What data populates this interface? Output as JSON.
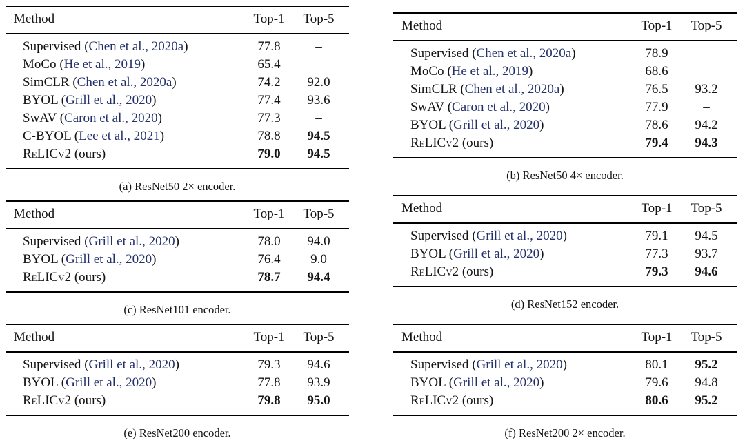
{
  "page": {
    "background": "#ffffff",
    "text_color": "#131313",
    "citation_color": "#23306a"
  },
  "tables": [
    {
      "id": "a",
      "caption": "(a) ResNet50 2× encoder.",
      "columns": [
        "Method",
        "Top-1",
        "Top-5"
      ],
      "rows": [
        {
          "method": "Supervised",
          "cite": "Chen et al., 2020a",
          "top1": "77.8",
          "top5": "–",
          "bold1": false,
          "bold5": false,
          "smallcaps": false
        },
        {
          "method": "MoCo",
          "cite": "He et al., 2019",
          "top1": "65.4",
          "top5": "–",
          "bold1": false,
          "bold5": false,
          "smallcaps": false
        },
        {
          "method": "SimCLR",
          "cite": "Chen et al., 2020a",
          "top1": "74.2",
          "top5": "92.0",
          "bold1": false,
          "bold5": false,
          "smallcaps": false
        },
        {
          "method": "BYOL",
          "cite": "Grill et al., 2020",
          "top1": "77.4",
          "top5": "93.6",
          "bold1": false,
          "bold5": false,
          "smallcaps": false
        },
        {
          "method": "SwAV",
          "cite": "Caron et al., 2020",
          "top1": "77.3",
          "top5": "–",
          "bold1": false,
          "bold5": false,
          "smallcaps": false
        },
        {
          "method": "C-BYOL",
          "cite": "Lee et al., 2021",
          "top1": "78.8",
          "top5": "94.5",
          "bold1": false,
          "bold5": true,
          "smallcaps": false
        },
        {
          "method": "ReLICv2",
          "suffix": "(ours)",
          "top1": "79.0",
          "top5": "94.5",
          "bold1": true,
          "bold5": true,
          "smallcaps": true
        }
      ]
    },
    {
      "id": "b",
      "caption": "(b) ResNet50 4× encoder.",
      "columns": [
        "Method",
        "Top-1",
        "Top-5"
      ],
      "rows": [
        {
          "method": "Supervised",
          "cite": "Chen et al., 2020a",
          "top1": "78.9",
          "top5": "–",
          "bold1": false,
          "bold5": false,
          "smallcaps": false
        },
        {
          "method": "MoCo",
          "cite": "He et al., 2019",
          "top1": "68.6",
          "top5": "–",
          "bold1": false,
          "bold5": false,
          "smallcaps": false
        },
        {
          "method": "SimCLR",
          "cite": "Chen et al., 2020a",
          "top1": "76.5",
          "top5": "93.2",
          "bold1": false,
          "bold5": false,
          "smallcaps": false
        },
        {
          "method": "SwAV",
          "cite": "Caron et al., 2020",
          "top1": "77.9",
          "top5": "–",
          "bold1": false,
          "bold5": false,
          "smallcaps": false
        },
        {
          "method": "BYOL",
          "cite": "Grill et al., 2020",
          "top1": "78.6",
          "top5": "94.2",
          "bold1": false,
          "bold5": false,
          "smallcaps": false
        },
        {
          "method": "ReLICv2",
          "suffix": "(ours)",
          "top1": "79.4",
          "top5": "94.3",
          "bold1": true,
          "bold5": true,
          "smallcaps": true
        }
      ]
    },
    {
      "id": "c",
      "caption": "(c) ResNet101 encoder.",
      "columns": [
        "Method",
        "Top-1",
        "Top-5"
      ],
      "rows": [
        {
          "method": "Supervised",
          "cite": "Grill et al., 2020",
          "top1": "78.0",
          "top5": "94.0",
          "bold1": false,
          "bold5": false,
          "smallcaps": false
        },
        {
          "method": "BYOL",
          "cite": "Grill et al., 2020",
          "top1": "76.4",
          "top5": "9.0",
          "bold1": false,
          "bold5": false,
          "smallcaps": false
        },
        {
          "method": "ReLICv2",
          "suffix": "(ours)",
          "top1": "78.7",
          "top5": "94.4",
          "bold1": true,
          "bold5": true,
          "smallcaps": true
        }
      ]
    },
    {
      "id": "d",
      "caption": "(d) ResNet152 encoder.",
      "columns": [
        "Method",
        "Top-1",
        "Top-5"
      ],
      "rows": [
        {
          "method": "Supervised",
          "cite": "Grill et al., 2020",
          "top1": "79.1",
          "top5": "94.5",
          "bold1": false,
          "bold5": false,
          "smallcaps": false
        },
        {
          "method": "BYOL",
          "cite": "Grill et al., 2020",
          "top1": "77.3",
          "top5": "93.7",
          "bold1": false,
          "bold5": false,
          "smallcaps": false
        },
        {
          "method": "ReLICv2",
          "suffix": "(ours)",
          "top1": "79.3",
          "top5": "94.6",
          "bold1": true,
          "bold5": true,
          "smallcaps": true
        }
      ]
    },
    {
      "id": "e",
      "caption": "(e) ResNet200 encoder.",
      "columns": [
        "Method",
        "Top-1",
        "Top-5"
      ],
      "rows": [
        {
          "method": "Supervised",
          "cite": "Grill et al., 2020",
          "top1": "79.3",
          "top5": "94.6",
          "bold1": false,
          "bold5": false,
          "smallcaps": false
        },
        {
          "method": "BYOL",
          "cite": "Grill et al., 2020",
          "top1": "77.8",
          "top5": "93.9",
          "bold1": false,
          "bold5": false,
          "smallcaps": false
        },
        {
          "method": "ReLICv2",
          "suffix": "(ours)",
          "top1": "79.8",
          "top5": "95.0",
          "bold1": true,
          "bold5": true,
          "smallcaps": true
        }
      ]
    },
    {
      "id": "f",
      "caption": "(f) ResNet200 2× encoder.",
      "columns": [
        "Method",
        "Top-1",
        "Top-5"
      ],
      "rows": [
        {
          "method": "Supervised",
          "cite": "Grill et al., 2020",
          "top1": "80.1",
          "top5": "95.2",
          "bold1": false,
          "bold5": true,
          "smallcaps": false
        },
        {
          "method": "BYOL",
          "cite": "Grill et al., 2020",
          "top1": "79.6",
          "top5": "94.8",
          "bold1": false,
          "bold5": false,
          "smallcaps": false
        },
        {
          "method": "ReLICv2",
          "suffix": "(ours)",
          "top1": "80.6",
          "top5": "95.2",
          "bold1": true,
          "bold5": true,
          "smallcaps": true
        }
      ]
    }
  ],
  "chart_data": {
    "type": "table",
    "title": "ImageNet Top-1 and Top-5 accuracy by encoder",
    "subtables": [
      {
        "caption": "(a) ResNet50 2× encoder.",
        "columns": [
          "Method",
          "Top-1",
          "Top-5"
        ],
        "rows": [
          [
            "Supervised (Chen et al., 2020a)",
            77.8,
            null
          ],
          [
            "MoCo (He et al., 2019)",
            65.4,
            null
          ],
          [
            "SimCLR (Chen et al., 2020a)",
            74.2,
            92.0
          ],
          [
            "BYOL (Grill et al., 2020)",
            77.4,
            93.6
          ],
          [
            "SwAV (Caron et al., 2020)",
            77.3,
            null
          ],
          [
            "C-BYOL (Lee et al., 2021)",
            78.8,
            94.5
          ],
          [
            "ReLICv2 (ours)",
            79.0,
            94.5
          ]
        ]
      },
      {
        "caption": "(b) ResNet50 4× encoder.",
        "columns": [
          "Method",
          "Top-1",
          "Top-5"
        ],
        "rows": [
          [
            "Supervised (Chen et al., 2020a)",
            78.9,
            null
          ],
          [
            "MoCo (He et al., 2019)",
            68.6,
            null
          ],
          [
            "SimCLR (Chen et al., 2020a)",
            76.5,
            93.2
          ],
          [
            "SwAV (Caron et al., 2020)",
            77.9,
            null
          ],
          [
            "BYOL (Grill et al., 2020)",
            78.6,
            94.2
          ],
          [
            "ReLICv2 (ours)",
            79.4,
            94.3
          ]
        ]
      },
      {
        "caption": "(c) ResNet101 encoder.",
        "columns": [
          "Method",
          "Top-1",
          "Top-5"
        ],
        "rows": [
          [
            "Supervised (Grill et al., 2020)",
            78.0,
            94.0
          ],
          [
            "BYOL (Grill et al., 2020)",
            76.4,
            9.0
          ],
          [
            "ReLICv2 (ours)",
            78.7,
            94.4
          ]
        ]
      },
      {
        "caption": "(d) ResNet152 encoder.",
        "columns": [
          "Method",
          "Top-1",
          "Top-5"
        ],
        "rows": [
          [
            "Supervised (Grill et al., 2020)",
            79.1,
            94.5
          ],
          [
            "BYOL (Grill et al., 2020)",
            77.3,
            93.7
          ],
          [
            "ReLICv2 (ours)",
            79.3,
            94.6
          ]
        ]
      },
      {
        "caption": "(e) ResNet200 encoder.",
        "columns": [
          "Method",
          "Top-1",
          "Top-5"
        ],
        "rows": [
          [
            "Supervised (Grill et al., 2020)",
            79.3,
            94.6
          ],
          [
            "BYOL (Grill et al., 2020)",
            77.8,
            93.9
          ],
          [
            "ReLICv2 (ours)",
            79.8,
            95.0
          ]
        ]
      },
      {
        "caption": "(f) ResNet200 2× encoder.",
        "columns": [
          "Method",
          "Top-1",
          "Top-5"
        ],
        "rows": [
          [
            "Supervised (Grill et al., 2020)",
            80.1,
            95.2
          ],
          [
            "BYOL (Grill et al., 2020)",
            79.6,
            94.8
          ],
          [
            "ReLICv2 (ours)",
            80.6,
            95.2
          ]
        ]
      }
    ]
  }
}
